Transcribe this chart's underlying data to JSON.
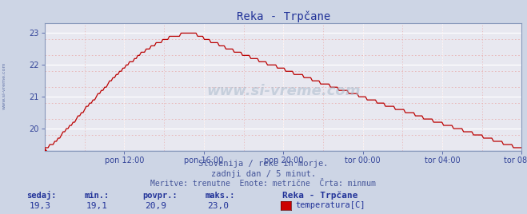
{
  "title": "Reka - Trpčane",
  "bg_color": "#cdd5e5",
  "plot_bg_color": "#e8e8f0",
  "grid_color_major": "#ffffff",
  "grid_color_minor": "#e8b0b0",
  "line_color": "#bb0000",
  "ylim_min": 19.3,
  "ylim_max": 23.3,
  "yticks": [
    20,
    21,
    22,
    23
  ],
  "xtick_labels": [
    "pon 12:00",
    "pon 16:00",
    "pon 20:00",
    "tor 00:00",
    "tor 04:00",
    "tor 08:00"
  ],
  "xtick_pos": [
    4,
    8,
    12,
    16,
    20,
    24
  ],
  "xlim_min": 0,
  "xlim_max": 24,
  "text_line1": "Slovenija / reke in morje.",
  "text_line2": "zadnji dan / 5 minut.",
  "text_line3": "Meritve: trenutne  Enote: metrične  Črta: minmum",
  "stat_labels": [
    "sedaj:",
    "min.:",
    "povpr.:",
    "maks.:"
  ],
  "stat_values": [
    "19,3",
    "19,1",
    "20,9",
    "23,0"
  ],
  "legend_label": "Reka - Trpčane",
  "legend_series": "temperatura[C]",
  "legend_color": "#cc0000",
  "watermark": "www.si-vreme.com",
  "sidebar_text": "www.si-vreme.com",
  "title_color": "#223399",
  "label_color": "#334499",
  "text_color": "#445599",
  "stat_label_color": "#223399",
  "stat_value_color": "#223399"
}
